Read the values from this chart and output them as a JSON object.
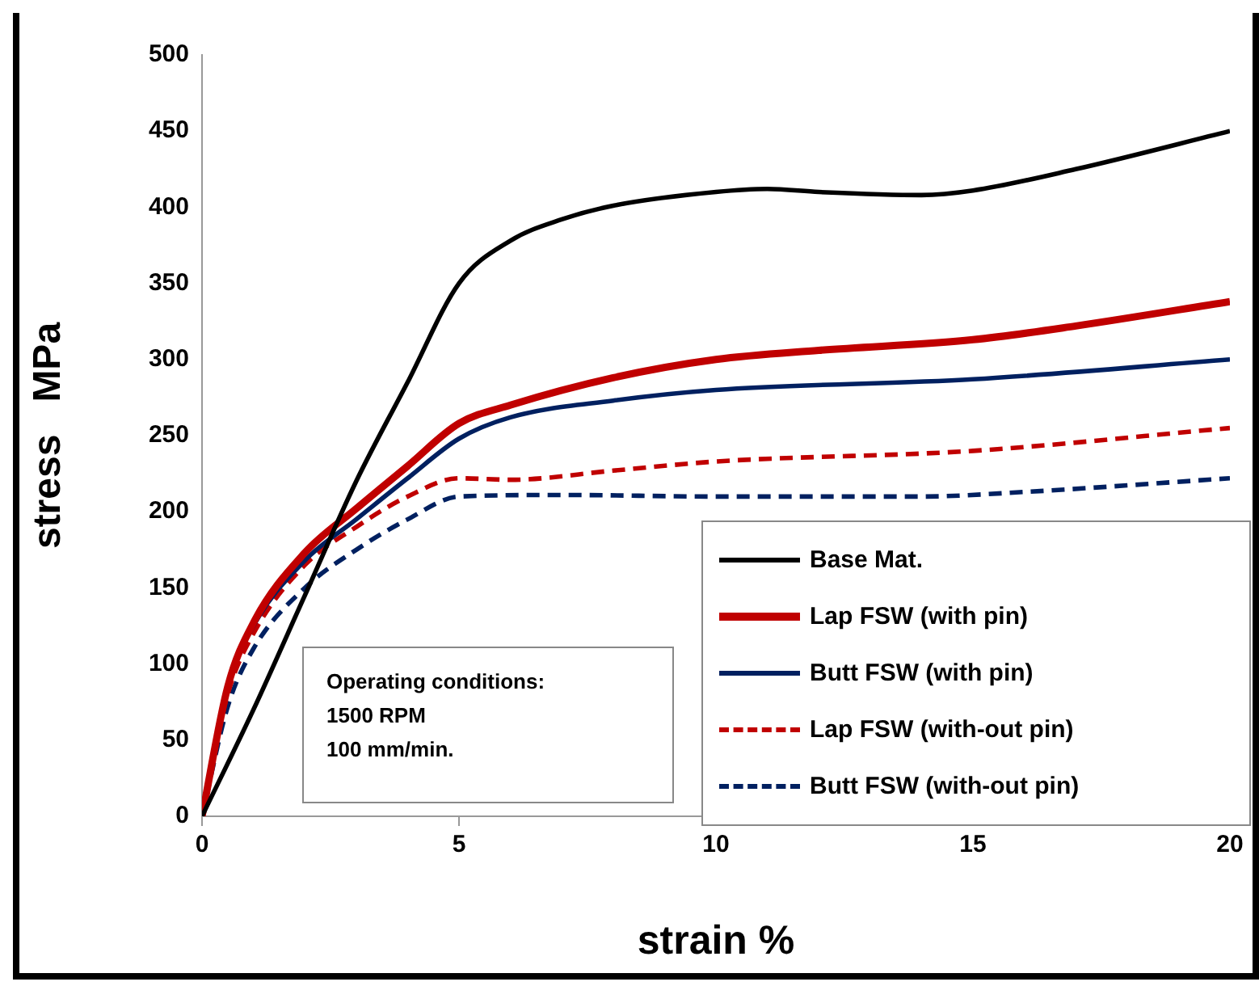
{
  "chart_data": {
    "type": "line",
    "xlabel": "strain %",
    "ylabel": "stress   MPa",
    "xlim": [
      0,
      20
    ],
    "xticks": [
      0,
      5,
      10,
      15,
      20
    ],
    "ylim": [
      0,
      500
    ],
    "yticks": [
      0,
      50,
      100,
      150,
      200,
      250,
      300,
      350,
      400,
      450,
      500
    ],
    "grid": false,
    "legend": "bottom right",
    "marker": "none",
    "annotations": [
      "Operating conditions:\n1500 RPM\n100 mm/min."
    ],
    "series": [
      {
        "name": "Base Mat.",
        "color": "#000000",
        "line_style": "solid",
        "x": [
          0,
          1,
          2,
          3,
          4,
          5,
          6,
          7,
          8,
          10,
          11,
          12,
          14,
          15,
          17,
          20
        ],
        "values": [
          0,
          70,
          145,
          220,
          285,
          350,
          378,
          392,
          401,
          410,
          412,
          410,
          408,
          411,
          425,
          450
        ]
      },
      {
        "name": "Lap FSW (with pin)",
        "color": "#c00000",
        "line_style": "solid",
        "x": [
          0,
          0.5,
          1,
          2,
          3,
          4,
          5,
          6,
          8,
          10,
          12,
          15,
          17,
          20
        ],
        "values": [
          0,
          85,
          127,
          173,
          202,
          230,
          258,
          270,
          288,
          300,
          306,
          313,
          322,
          338
        ]
      },
      {
        "name": "Butt FSW (with pin)",
        "color": "#002060",
        "line_style": "solid",
        "x": [
          0,
          0.5,
          1,
          2,
          3,
          4,
          5,
          6,
          8,
          10,
          15,
          20
        ],
        "values": [
          0,
          85,
          125,
          168,
          195,
          222,
          248,
          262,
          273,
          280,
          287,
          300
        ]
      },
      {
        "name": "Lap FSW (with-out pin)",
        "color": "#c00000",
        "line_style": "dashed",
        "x": [
          0,
          0.5,
          1,
          2,
          3,
          4,
          5,
          6,
          8,
          10,
          15,
          20
        ],
        "values": [
          0,
          80,
          120,
          165,
          190,
          210,
          222,
          221,
          227,
          233,
          240,
          255
        ]
      },
      {
        "name": "Butt FSW (with-out pin)",
        "color": "#002060",
        "line_style": "dashed",
        "x": [
          0,
          0.5,
          1,
          2,
          3,
          4,
          5,
          7,
          10,
          14,
          16,
          20
        ],
        "values": [
          0,
          72,
          110,
          150,
          175,
          195,
          210,
          211,
          210,
          210,
          213,
          222
        ]
      }
    ]
  }
}
